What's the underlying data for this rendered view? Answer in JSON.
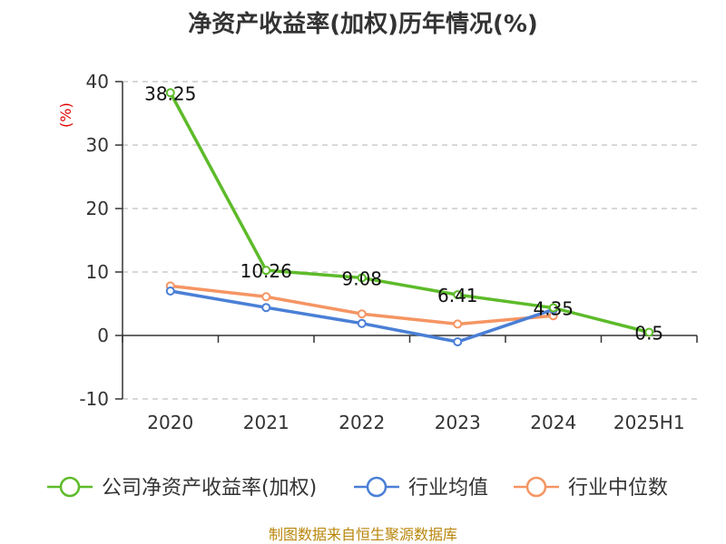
{
  "title": "净资产收益率(加权)历年情况(%)",
  "source": "制图数据来自恒生聚源数据库",
  "chart_data": {
    "type": "line",
    "title": "净资产收益率(加权)历年情况(%)",
    "ylabel": "(%)",
    "xlabel": "",
    "categories": [
      "2020",
      "2021",
      "2022",
      "2023",
      "2024",
      "2025H1"
    ],
    "ylim": [
      -10,
      40
    ],
    "yticks": [
      "-10",
      "0",
      "10",
      "20",
      "30",
      "40"
    ],
    "grid": true,
    "legend_position": "bottom",
    "series": [
      {
        "name": "公司净资产收益率(加权)",
        "color": "#5dbb2a",
        "values": [
          38.25,
          10.26,
          9.08,
          6.41,
          4.35,
          0.5
        ],
        "labels": [
          "38.25",
          "10.26",
          "9.08",
          "6.41",
          "4.35",
          "0.5"
        ]
      },
      {
        "name": "行业均值",
        "color": "#4a7fd6",
        "values": [
          7.0,
          4.4,
          1.9,
          -1.0,
          4.1,
          null
        ]
      },
      {
        "name": "行业中位数",
        "color": "#f59563",
        "values": [
          7.8,
          6.1,
          3.4,
          1.8,
          3.1,
          null
        ]
      }
    ]
  }
}
